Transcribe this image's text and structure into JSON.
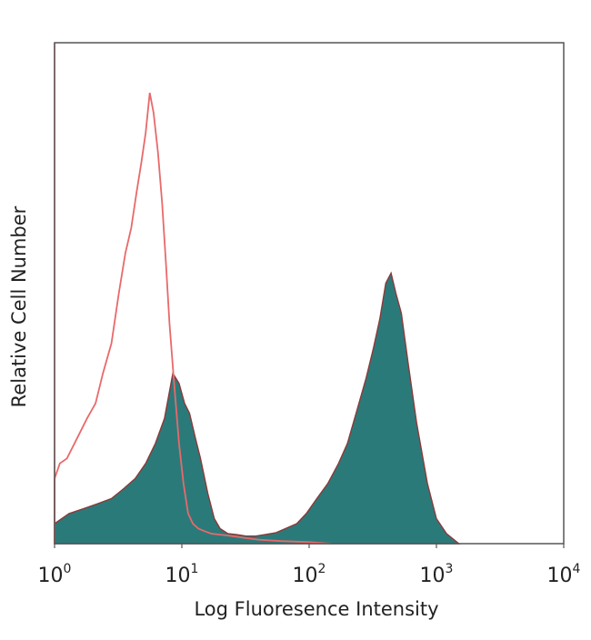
{
  "chart_data": {
    "type": "area",
    "title": "",
    "xlabel": "Log Fluoresence Intensity",
    "ylabel": "Relative Cell Number",
    "xscale": "log",
    "xlim": [
      1,
      10000
    ],
    "ylim": [
      0,
      100
    ],
    "grid": false,
    "legend": "none",
    "x_ticks": [
      {
        "base": "10",
        "exp": "0",
        "value": 1
      },
      {
        "base": "10",
        "exp": "1",
        "value": 10
      },
      {
        "base": "10",
        "exp": "2",
        "value": 100
      },
      {
        "base": "10",
        "exp": "3",
        "value": 1000
      },
      {
        "base": "10",
        "exp": "4",
        "value": 10000
      }
    ],
    "series": [
      {
        "role": "control",
        "style": "outline",
        "color": "#e8696b",
        "x": [
          1,
          1.1,
          1.25,
          1.5,
          1.8,
          2.1,
          2.4,
          2.8,
          3.2,
          3.6,
          4.0,
          4.4,
          4.8,
          5.2,
          5.6,
          6.0,
          6.5,
          7.0,
          7.5,
          8.0,
          8.7,
          9.5,
          10.3,
          11.2,
          12.2,
          13.5,
          15,
          17,
          20,
          25,
          30,
          40,
          60,
          100,
          150
        ],
        "y": [
          13,
          16,
          17,
          21,
          25,
          28,
          34,
          40,
          50,
          58,
          63,
          70,
          76,
          82,
          90,
          86,
          78,
          68,
          56,
          44,
          32,
          20,
          12,
          6,
          4,
          3,
          2.5,
          2,
          1.8,
          1.5,
          1.2,
          0.8,
          0.5,
          0.3,
          0
        ]
      },
      {
        "role": "stained",
        "style": "filled",
        "color": "#2b7a7a",
        "x": [
          1,
          1.3,
          1.7,
          2.2,
          2.8,
          3.5,
          4.3,
          5.2,
          6.2,
          7.3,
          8.5,
          9.5,
          10.5,
          11.5,
          12.8,
          14,
          16,
          18,
          20,
          23,
          27,
          32,
          38,
          45,
          55,
          65,
          80,
          95,
          115,
          140,
          170,
          200,
          240,
          280,
          320,
          360,
          400,
          440,
          480,
          530,
          600,
          700,
          850,
          1000,
          1200,
          1500
        ],
        "y": [
          4,
          6,
          7,
          8,
          9,
          11,
          13,
          16,
          20,
          25,
          34,
          32,
          28,
          26,
          21,
          17,
          10,
          5,
          3,
          2,
          1.8,
          1.5,
          1.5,
          1.8,
          2.2,
          3,
          4,
          6,
          9,
          12,
          16,
          20,
          27,
          33,
          39,
          45,
          52,
          54,
          50,
          46,
          36,
          24,
          12,
          5,
          2,
          0
        ]
      }
    ]
  }
}
